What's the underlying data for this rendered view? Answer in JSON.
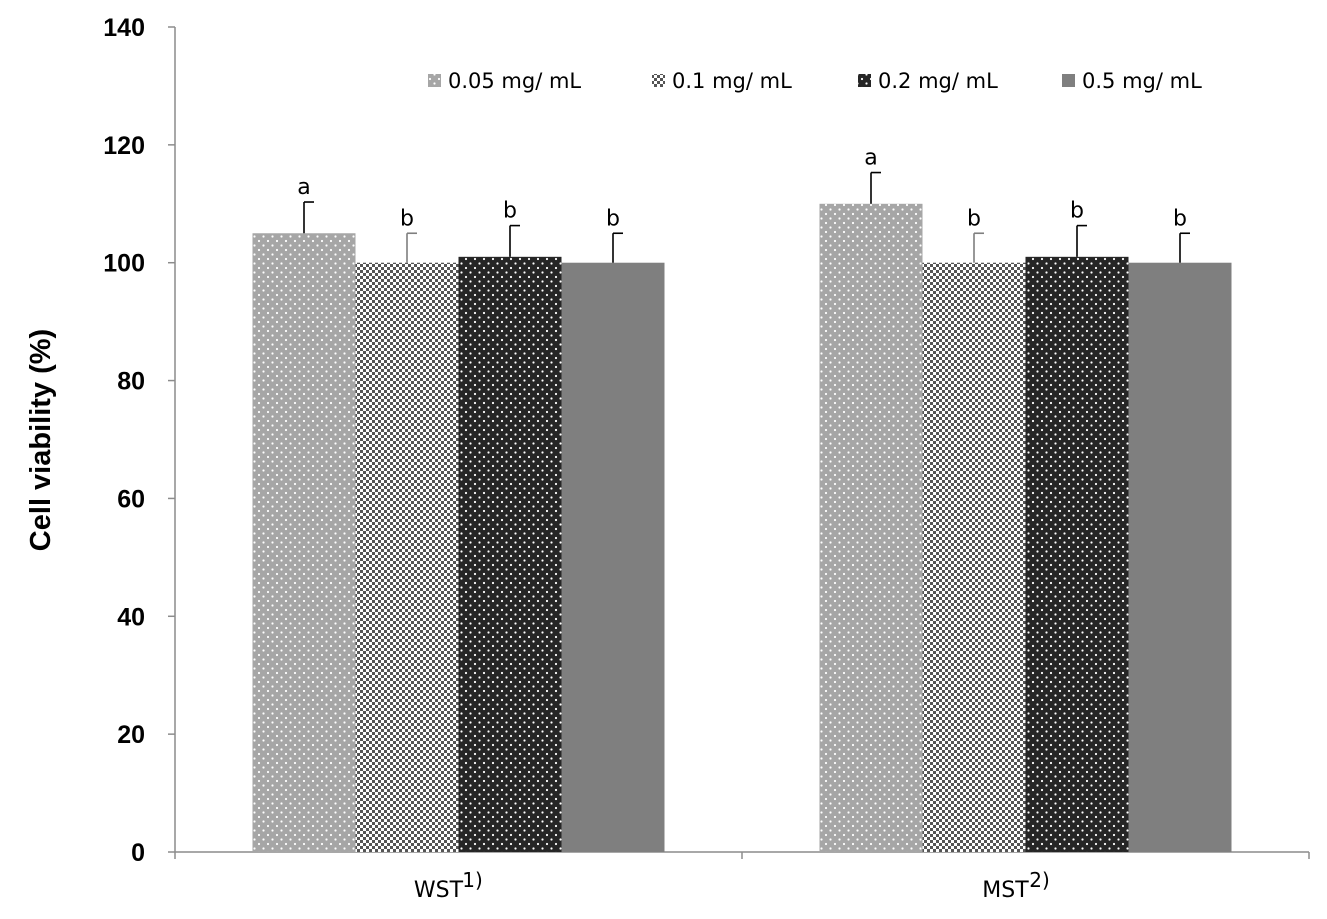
{
  "chart_data": {
    "type": "bar",
    "ylabel": "Cell viability (%)",
    "xlabel": "",
    "ylim": [
      0,
      140
    ],
    "yticks": [
      0,
      20,
      40,
      60,
      80,
      100,
      120,
      140
    ],
    "grid": false,
    "legend_position": "top",
    "categories": [
      {
        "name": "WST",
        "superscript": "1)"
      },
      {
        "name": "MST",
        "superscript": "2)"
      }
    ],
    "series": [
      {
        "name": "0.05 mg/ mL",
        "values": [
          105,
          110
        ],
        "errors": [
          5.3,
          5.3
        ],
        "letters": [
          "a",
          "a"
        ],
        "pattern": "dots-light",
        "color": "#a6a6a6"
      },
      {
        "name": "0.1 mg/ mL",
        "values": [
          100,
          100
        ],
        "errors": [
          5,
          5
        ],
        "letters": [
          "b",
          "b"
        ],
        "pattern": "checker",
        "color": "#c0c0c0"
      },
      {
        "name": "0.2 mg/ mL",
        "values": [
          101,
          101
        ],
        "errors": [
          5.3,
          5.3
        ],
        "letters": [
          "b",
          "b"
        ],
        "pattern": "dots-dark",
        "color": "#262626"
      },
      {
        "name": "0.5 mg/ mL",
        "values": [
          100,
          100
        ],
        "errors": [
          5,
          5
        ],
        "letters": [
          "b",
          "b"
        ],
        "pattern": "solid",
        "color": "#7f7f7f"
      }
    ]
  }
}
